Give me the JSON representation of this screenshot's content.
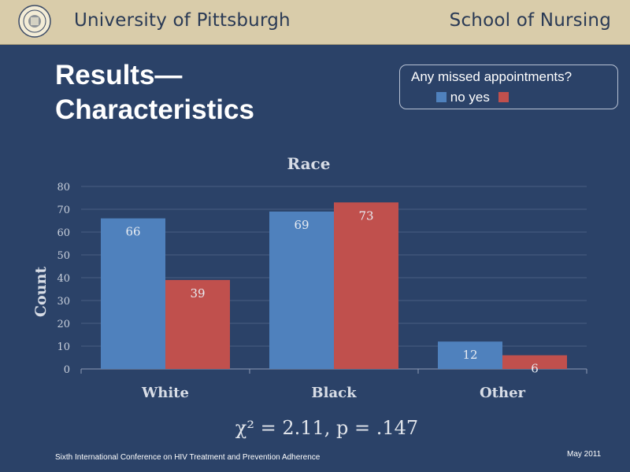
{
  "header": {
    "university": "University of Pittsburgh",
    "school": "School of Nursing"
  },
  "slide": {
    "title_line1": "Results—",
    "title_line2": "Characteristics"
  },
  "legend": {
    "title": "Any missed appointments?",
    "items": [
      {
        "label": "no",
        "color": "#4f81bd"
      },
      {
        "label": "yes",
        "color": "#c0504d"
      }
    ]
  },
  "chart_data": {
    "type": "bar",
    "title": "Race",
    "xlabel": "",
    "ylabel": "Count",
    "categories": [
      "White",
      "Black",
      "Other"
    ],
    "series": [
      {
        "name": "no",
        "values": [
          66,
          69,
          12
        ],
        "color": "#4f81bd"
      },
      {
        "name": "yes",
        "values": [
          39,
          73,
          6
        ],
        "color": "#c0504d"
      }
    ],
    "yticks": [
      "0",
      "10",
      "20",
      "30",
      "40",
      "50",
      "60",
      "70",
      "80"
    ],
    "ylim": [
      0,
      80
    ],
    "grid": true,
    "annotation": "χ² = 2.11, p = .147"
  },
  "footer": {
    "conference": "Sixth International Conference on HIV Treatment and Prevention Adherence",
    "date": "May 2011"
  },
  "colors": {
    "background": "#2b4268",
    "header_band": "#d9ccaa"
  }
}
